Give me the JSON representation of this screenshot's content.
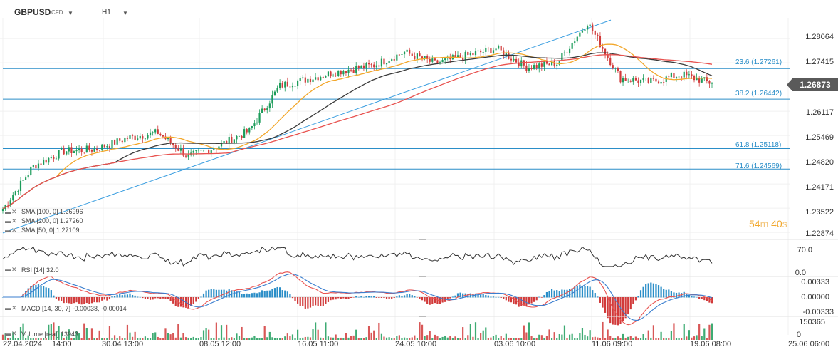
{
  "header": {
    "symbol": "GBPUSD",
    "instrument_type": "CFD",
    "timeframe": "H1"
  },
  "current_price": "1.26873",
  "countdown": {
    "minutes": "54",
    "minutes_unit": "m",
    "seconds": "40",
    "seconds_unit": "s"
  },
  "price_axis": [
    "1.28064",
    "1.27415",
    "1.26117",
    "1.25469",
    "1.24820",
    "1.24171",
    "1.23522",
    "1.22874"
  ],
  "fib_levels": [
    {
      "label": "23.6 (1.27261)",
      "value": 1.27261
    },
    {
      "label": "38.2 (1.26442)",
      "value": 1.26442
    },
    {
      "label": "61.8 (1.25118)",
      "value": 1.25118
    },
    {
      "label": "71.6 (1.24569)",
      "value": 1.24569
    }
  ],
  "indicators": {
    "sma100": "SMA [100, 0] 1.26996",
    "sma200": "SMA [200, 0] 1.27260",
    "sma50": "SMA [50, 0] 1.27109",
    "rsi": "RSI [14] 32.0",
    "macd": "MACD [14, 30, 7] -0.00038, -0.00014",
    "volume": "Volume [real] 13943"
  },
  "rsi_axis": [
    "70.0",
    "0.0"
  ],
  "macd_axis": [
    "0.00333",
    "0.00000",
    "-0.00333"
  ],
  "volume_axis": [
    "150365",
    "0"
  ],
  "date_axis": [
    "22.04.2024",
    "14:00",
    "30.04 13:00",
    "08.05 12:00",
    "16.05 11:00",
    "24.05 10:00",
    "03.06 10:00",
    "11.06 09:00",
    "19.06 08:00",
    "25.06 06:00"
  ],
  "colors": {
    "sma100": "#3a3a3a",
    "sma200": "#e8524f",
    "sma50": "#f2a72b",
    "fib": "#2a8ec8",
    "up": "#1c9c5a",
    "down": "#d13a3a",
    "trendline": "#3a9ee0"
  },
  "chart_data": {
    "type": "candlestick",
    "symbol": "GBPUSD",
    "timeframe": "H1",
    "x_range": [
      "22.04.2024 14:00",
      "25.06 06:00"
    ],
    "ylim": [
      1.22874,
      1.28064
    ],
    "close_path": [
      [
        "22.04.2024 14:00",
        1.235
      ],
      [
        "24.04",
        1.2465
      ],
      [
        "26.04",
        1.2505
      ],
      [
        "30.04 13:00",
        1.251
      ],
      [
        "02.05",
        1.254
      ],
      [
        "06.05",
        1.2555
      ],
      [
        "08.05 12:00",
        1.249
      ],
      [
        "10.05",
        1.252
      ],
      [
        "14.05",
        1.256
      ],
      [
        "16.05 11:00",
        1.268
      ],
      [
        "20.05",
        1.27
      ],
      [
        "22.05",
        1.272
      ],
      [
        "24.05 10:00",
        1.2735
      ],
      [
        "28.05",
        1.277
      ],
      [
        "31.05",
        1.274
      ],
      [
        "03.06 10:00",
        1.276
      ],
      [
        "05.06",
        1.278
      ],
      [
        "07.06",
        1.273
      ],
      [
        "11.06 09:00",
        1.274
      ],
      [
        "12.06",
        1.285
      ],
      [
        "14.06",
        1.27
      ],
      [
        "17.06",
        1.269
      ],
      [
        "19.06 08:00",
        1.271
      ],
      [
        "20.06",
        1.26873
      ]
    ],
    "sma50": {
      "last": 1.27109
    },
    "sma100": {
      "last": 1.26996
    },
    "sma200": {
      "last": 1.2726
    },
    "rsi": {
      "period": 14,
      "last": 32.0,
      "ylim": [
        0,
        70
      ]
    },
    "macd": {
      "params": [
        14,
        30,
        7
      ],
      "last": [
        -0.00038,
        -0.00014
      ],
      "ylim": [
        -0.00333,
        0.00333
      ]
    },
    "volume": {
      "last": 13943,
      "ylim": [
        0,
        150365
      ]
    }
  }
}
